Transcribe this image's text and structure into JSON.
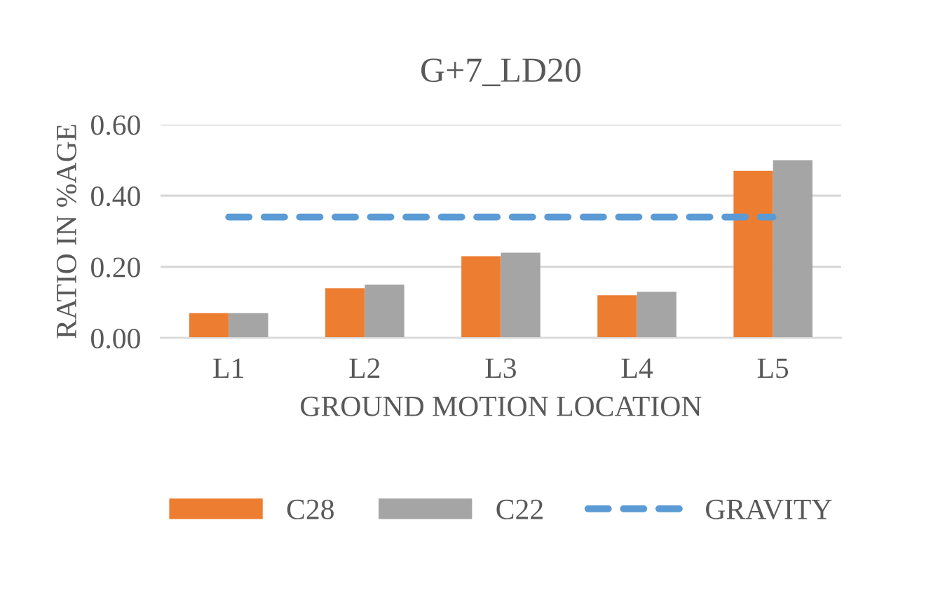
{
  "chart_data": {
    "type": "bar",
    "title": "G+7_LD20",
    "xlabel": "GROUND MOTION LOCATION",
    "ylabel": "RATIO IN %AGE",
    "categories": [
      "L1",
      "L2",
      "L3",
      "L4",
      "L5"
    ],
    "series": [
      {
        "name": "C28",
        "color": "#ed7d31",
        "values": [
          0.07,
          0.14,
          0.23,
          0.12,
          0.47
        ]
      },
      {
        "name": "C22",
        "color": "#a5a5a5",
        "values": [
          0.07,
          0.15,
          0.24,
          0.13,
          0.5
        ]
      },
      {
        "name": "GRAVITY",
        "type": "line",
        "color": "#5b9bd5",
        "line_style": "dashed",
        "values": [
          0.34,
          0.34,
          0.34,
          0.34,
          0.34
        ]
      }
    ],
    "ylim": [
      0,
      0.6
    ],
    "yticks": [
      {
        "value": 0,
        "label": "0.00"
      },
      {
        "value": 0.2,
        "label": "0.20"
      },
      {
        "value": 0.4,
        "label": "0.40"
      },
      {
        "value": 0.6,
        "label": "0.60"
      }
    ],
    "grid": "y",
    "legend": "bottom"
  }
}
